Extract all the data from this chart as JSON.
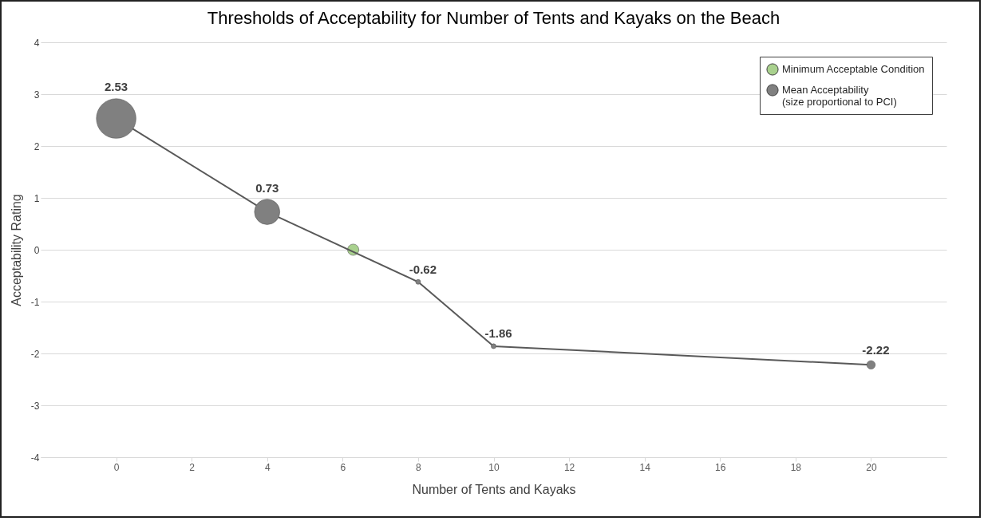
{
  "chart_data": {
    "type": "bubble",
    "title": "Thresholds of Acceptability for Number of Tents and Kayaks on the Beach",
    "xlabel": "Number of Tents and Kayaks",
    "ylabel": "Acceptability Rating",
    "series": [
      {
        "name": "Minimum Acceptable Condition",
        "type": "scatter",
        "color": "#a9d18e",
        "x": [
          6.28
        ],
        "values": [
          0
        ]
      },
      {
        "name": "Mean Acceptability\n(size proportional to PCI)",
        "color": "#808080",
        "x": [
          0,
          4,
          8,
          10,
          20
        ],
        "values": [
          2.53,
          0.73,
          -0.62,
          -1.86,
          -2.22
        ],
        "sizes": [
          1,
          0.41,
          0.015,
          0.015,
          0.046
        ],
        "value_labels": [
          "2.53",
          "0.73",
          "-0.62",
          "-1.86",
          "-2.22"
        ]
      }
    ],
    "xlim": [
      -2,
      22
    ],
    "xticks": [
      0,
      2,
      4,
      6,
      8,
      10,
      12,
      14,
      16,
      18,
      20
    ],
    "ylim": [
      -4,
      4
    ],
    "yticks": [
      -4,
      -3,
      -2,
      -1,
      0,
      1,
      2,
      3,
      4
    ],
    "grid": "y",
    "legend": "top right",
    "marker": "circle"
  }
}
